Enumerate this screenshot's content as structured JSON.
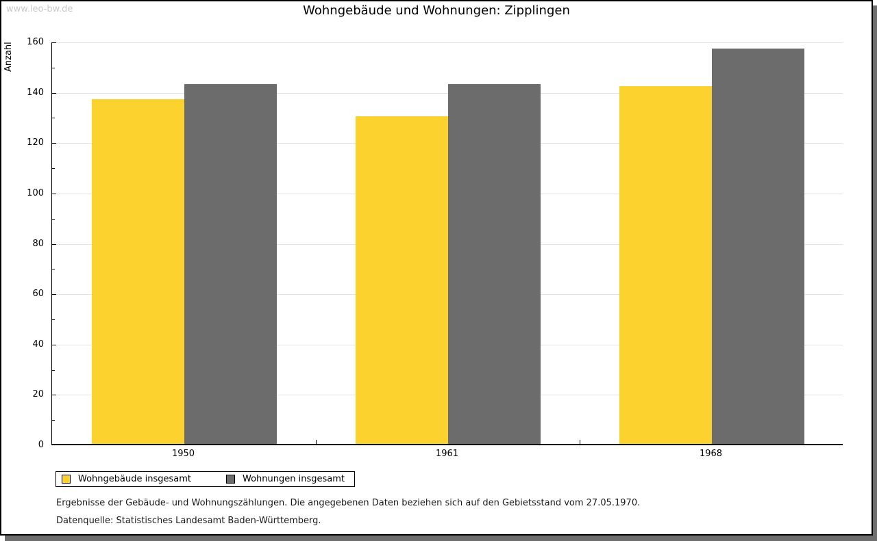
{
  "watermark": "www.leo-bw.de",
  "title": "Wohngebäude und Wohnungen: Zipplingen",
  "chart_data": {
    "type": "bar",
    "title": "Wohngebäude und Wohnungen: Zipplingen",
    "ylabel": "Anzahl",
    "xlabel": "",
    "categories": [
      "1950",
      "1961",
      "1968"
    ],
    "series": [
      {
        "name": "Wohngebäude insgesamt",
        "color": "#fcd32e",
        "values": [
          137,
          130,
          142
        ]
      },
      {
        "name": "Wohnungen insgesamt",
        "color": "#6c6c6c",
        "values": [
          143,
          143,
          157
        ]
      }
    ],
    "ylim": [
      0,
      160
    ],
    "ytick_step": 20,
    "minor_tick_step": 10,
    "grid": true,
    "legend_position": "bottom-left"
  },
  "footnotes": [
    "Ergebnisse der Gebäude- und Wohnungszählungen. Die angegebenen Daten beziehen sich auf den Gebietsstand vom 27.05.1970.",
    "Datenquelle: Statistisches Landesamt Baden-Württemberg."
  ],
  "colors": {
    "bar_yellow": "#fcd32e",
    "bar_gray": "#6c6c6c",
    "gridline": "#e3e3e3",
    "watermark": "#c9c9c9",
    "card_shadow": "#6e6e6e",
    "border": "#000000"
  }
}
